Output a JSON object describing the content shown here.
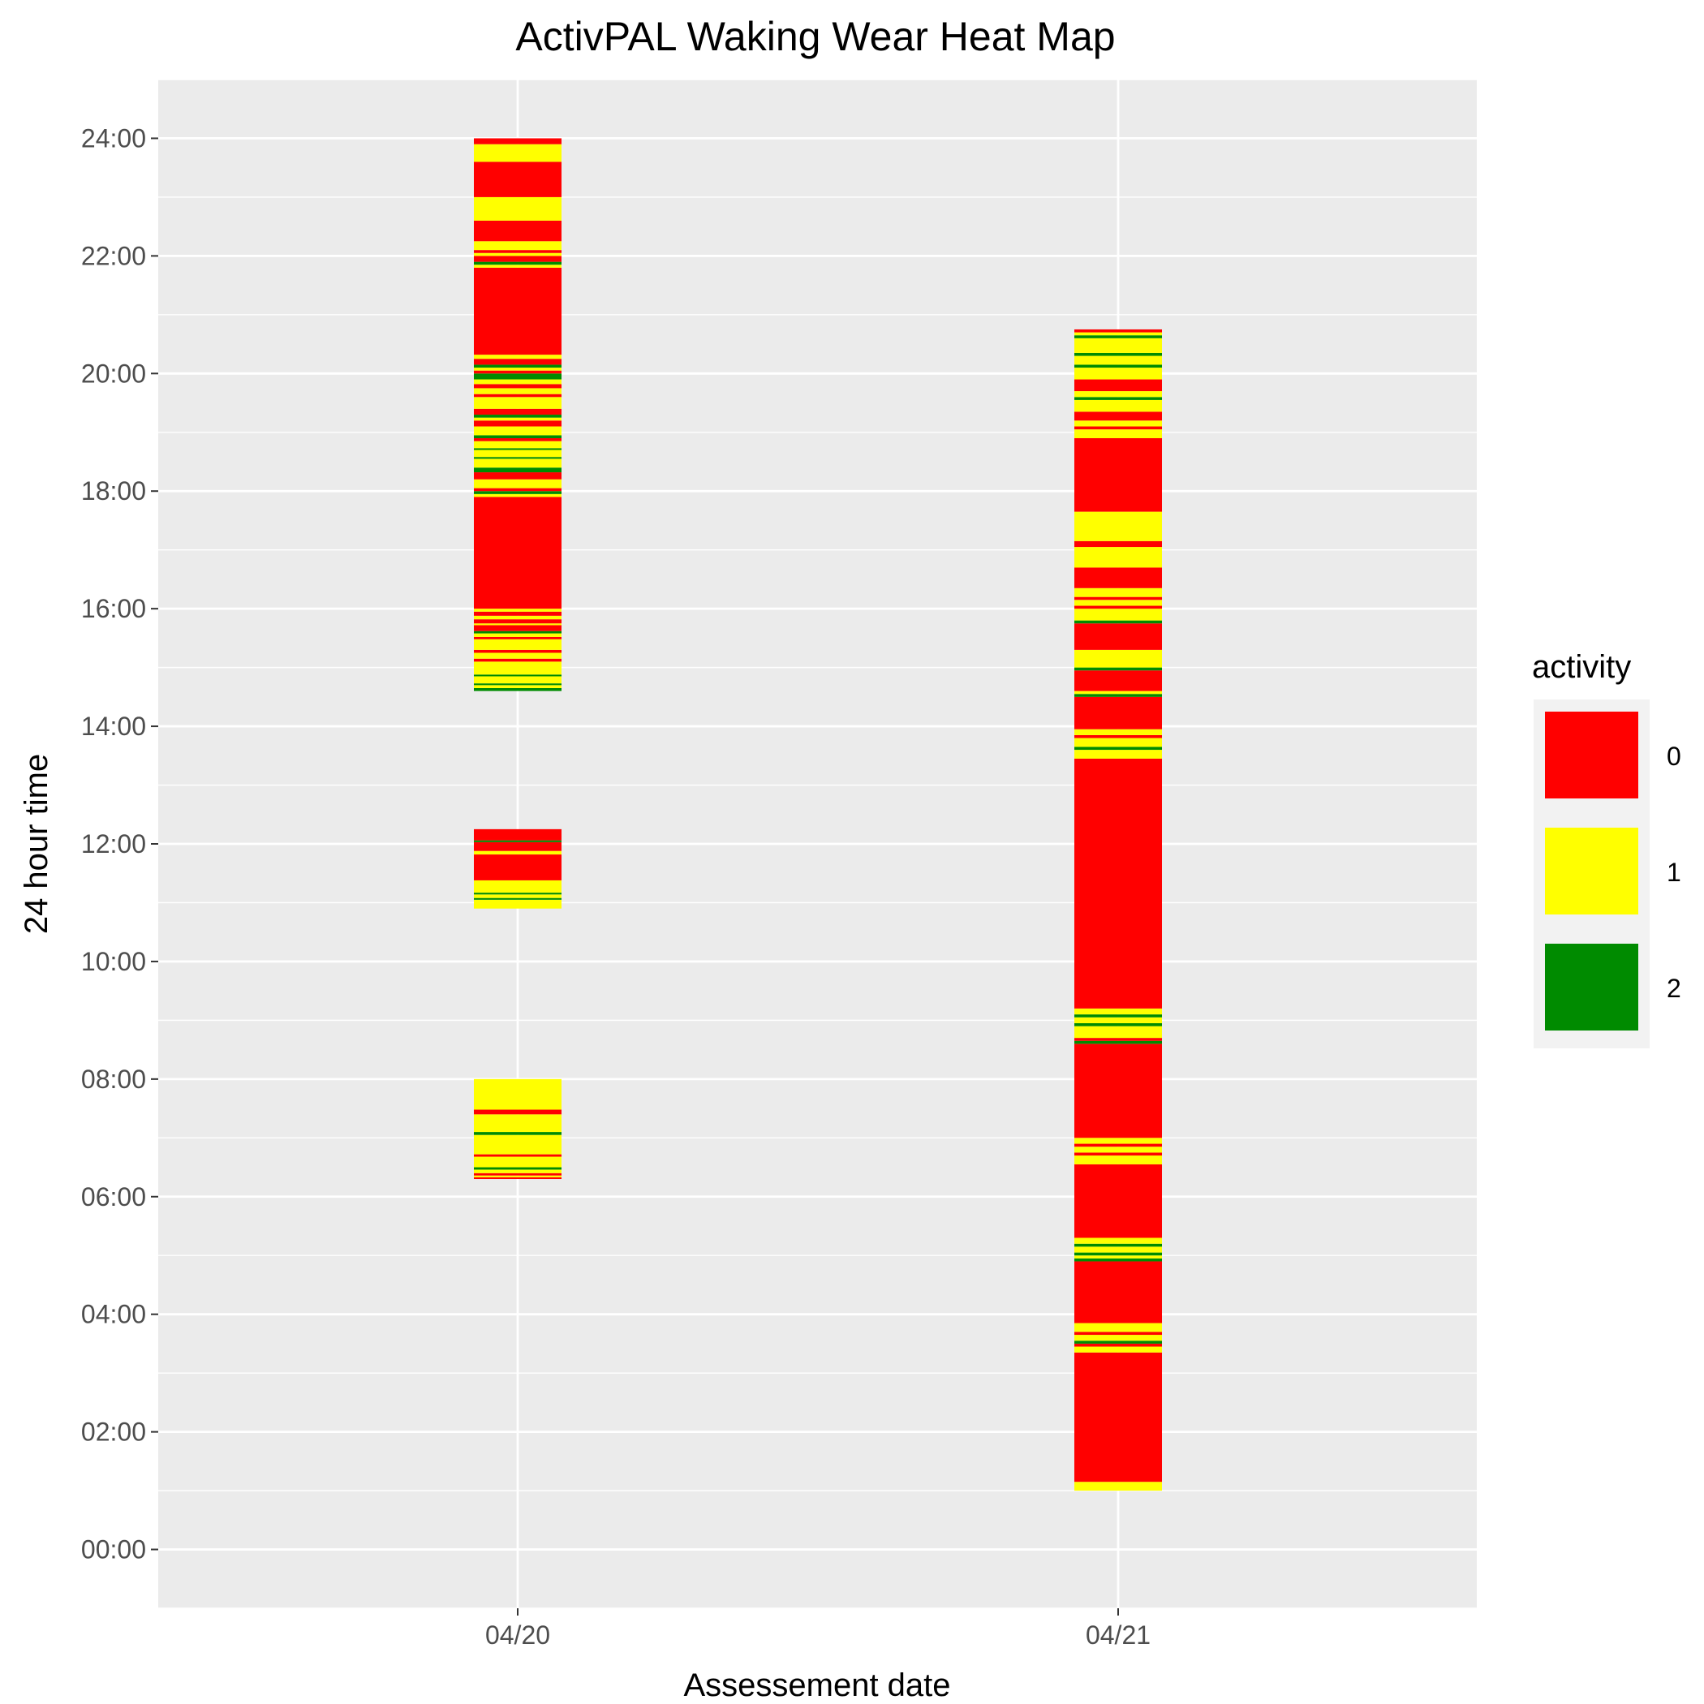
{
  "chart_data": {
    "type": "heatmap",
    "title": "ActivPAL Waking Wear Heat Map",
    "xlabel": "Assessement date",
    "ylabel": "24 hour time",
    "x_categories": [
      "04/20",
      "04/21"
    ],
    "y_ticks": [
      "00:00",
      "02:00",
      "04:00",
      "06:00",
      "08:00",
      "10:00",
      "12:00",
      "14:00",
      "16:00",
      "18:00",
      "20:00",
      "22:00",
      "24:00"
    ],
    "ylim_hours": [
      -1.0,
      25.0
    ],
    "grid": true,
    "legend": {
      "title": "activity",
      "position": "right",
      "entries": [
        {
          "label": "0",
          "color": "#FF0000"
        },
        {
          "label": "1",
          "color": "#FFFF00"
        },
        {
          "label": "2",
          "color": "#008B00"
        }
      ]
    },
    "colors": {
      "0": "#FF0000",
      "1": "#FFFF00",
      "2": "#008B00",
      "panel": "#EBEBEB",
      "grid": "#FFFFFF"
    },
    "columns": [
      {
        "date": "04/20",
        "segments": [
          [
            6.3,
            6.33,
            0
          ],
          [
            6.33,
            6.36,
            1
          ],
          [
            6.36,
            6.4,
            0
          ],
          [
            6.4,
            6.46,
            1
          ],
          [
            6.46,
            6.5,
            2
          ],
          [
            6.5,
            6.68,
            1
          ],
          [
            6.68,
            6.72,
            0
          ],
          [
            6.72,
            7.05,
            1
          ],
          [
            7.05,
            7.1,
            2
          ],
          [
            7.1,
            7.4,
            1
          ],
          [
            7.4,
            7.48,
            0
          ],
          [
            7.48,
            8.0,
            1
          ],
          [
            10.9,
            11.05,
            1
          ],
          [
            11.05,
            11.08,
            2
          ],
          [
            11.08,
            11.14,
            1
          ],
          [
            11.14,
            11.17,
            2
          ],
          [
            11.17,
            11.38,
            1
          ],
          [
            11.38,
            11.82,
            0
          ],
          [
            11.82,
            11.88,
            1
          ],
          [
            11.88,
            12.03,
            0
          ],
          [
            12.03,
            12.06,
            2
          ],
          [
            12.06,
            12.25,
            0
          ],
          [
            14.6,
            14.65,
            2
          ],
          [
            14.65,
            14.7,
            1
          ],
          [
            14.7,
            14.73,
            2
          ],
          [
            14.73,
            14.85,
            1
          ],
          [
            14.85,
            14.88,
            2
          ],
          [
            14.88,
            15.1,
            1
          ],
          [
            15.1,
            15.15,
            0
          ],
          [
            15.15,
            15.25,
            1
          ],
          [
            15.25,
            15.3,
            0
          ],
          [
            15.3,
            15.48,
            1
          ],
          [
            15.48,
            15.52,
            0
          ],
          [
            15.52,
            15.58,
            1
          ],
          [
            15.58,
            15.62,
            2
          ],
          [
            15.62,
            15.72,
            0
          ],
          [
            15.72,
            15.75,
            1
          ],
          [
            15.75,
            15.82,
            0
          ],
          [
            15.82,
            15.88,
            1
          ],
          [
            15.88,
            15.95,
            0
          ],
          [
            15.95,
            16.0,
            1
          ],
          [
            16.0,
            17.9,
            0
          ],
          [
            17.9,
            17.95,
            1
          ],
          [
            17.95,
            18.0,
            2
          ],
          [
            18.0,
            18.05,
            0
          ],
          [
            18.05,
            18.2,
            1
          ],
          [
            18.2,
            18.32,
            0
          ],
          [
            18.32,
            18.4,
            2
          ],
          [
            18.4,
            18.55,
            1
          ],
          [
            18.55,
            18.58,
            2
          ],
          [
            18.58,
            18.7,
            1
          ],
          [
            18.7,
            18.73,
            2
          ],
          [
            18.73,
            18.85,
            1
          ],
          [
            18.85,
            18.9,
            0
          ],
          [
            18.9,
            18.95,
            2
          ],
          [
            18.95,
            19.1,
            1
          ],
          [
            19.1,
            19.2,
            0
          ],
          [
            19.2,
            19.25,
            1
          ],
          [
            19.25,
            19.3,
            2
          ],
          [
            19.3,
            19.4,
            0
          ],
          [
            19.4,
            19.6,
            1
          ],
          [
            19.6,
            19.65,
            0
          ],
          [
            19.65,
            19.75,
            1
          ],
          [
            19.75,
            19.82,
            0
          ],
          [
            19.82,
            19.9,
            1
          ],
          [
            19.9,
            20.0,
            2
          ],
          [
            20.0,
            20.05,
            0
          ],
          [
            20.05,
            20.1,
            1
          ],
          [
            20.1,
            20.15,
            2
          ],
          [
            20.15,
            20.25,
            0
          ],
          [
            20.25,
            20.32,
            1
          ],
          [
            20.32,
            21.8,
            0
          ],
          [
            21.8,
            21.85,
            1
          ],
          [
            21.85,
            21.9,
            2
          ],
          [
            21.9,
            22.0,
            0
          ],
          [
            22.0,
            22.05,
            1
          ],
          [
            22.05,
            22.1,
            0
          ],
          [
            22.1,
            22.25,
            1
          ],
          [
            22.25,
            22.6,
            0
          ],
          [
            22.6,
            23.0,
            1
          ],
          [
            23.0,
            23.6,
            0
          ],
          [
            23.6,
            23.9,
            1
          ],
          [
            23.9,
            24.0,
            0
          ]
        ]
      },
      {
        "date": "04/21",
        "segments": [
          [
            1.0,
            1.15,
            1
          ],
          [
            1.15,
            3.35,
            0
          ],
          [
            3.35,
            3.45,
            1
          ],
          [
            3.45,
            3.5,
            0
          ],
          [
            3.5,
            3.55,
            2
          ],
          [
            3.55,
            3.65,
            1
          ],
          [
            3.65,
            3.7,
            0
          ],
          [
            3.7,
            3.85,
            1
          ],
          [
            3.85,
            4.9,
            0
          ],
          [
            4.9,
            4.95,
            2
          ],
          [
            4.95,
            5.0,
            1
          ],
          [
            5.0,
            5.05,
            2
          ],
          [
            5.05,
            5.15,
            1
          ],
          [
            5.15,
            5.2,
            2
          ],
          [
            5.2,
            5.3,
            1
          ],
          [
            5.3,
            6.55,
            0
          ],
          [
            6.55,
            6.7,
            1
          ],
          [
            6.7,
            6.75,
            0
          ],
          [
            6.75,
            6.85,
            1
          ],
          [
            6.85,
            6.9,
            0
          ],
          [
            6.9,
            7.0,
            1
          ],
          [
            7.0,
            8.6,
            0
          ],
          [
            8.6,
            8.65,
            2
          ],
          [
            8.65,
            8.7,
            0
          ],
          [
            8.7,
            8.9,
            1
          ],
          [
            8.9,
            8.95,
            2
          ],
          [
            8.95,
            9.05,
            1
          ],
          [
            9.05,
            9.1,
            2
          ],
          [
            9.1,
            9.2,
            1
          ],
          [
            9.2,
            13.45,
            0
          ],
          [
            13.45,
            13.6,
            1
          ],
          [
            13.6,
            13.65,
            2
          ],
          [
            13.65,
            13.8,
            1
          ],
          [
            13.8,
            13.85,
            0
          ],
          [
            13.85,
            13.95,
            1
          ],
          [
            13.95,
            14.5,
            0
          ],
          [
            14.5,
            14.55,
            2
          ],
          [
            14.55,
            14.6,
            1
          ],
          [
            14.6,
            14.95,
            0
          ],
          [
            14.95,
            15.0,
            2
          ],
          [
            15.0,
            15.3,
            1
          ],
          [
            15.3,
            15.75,
            0
          ],
          [
            15.75,
            15.8,
            2
          ],
          [
            15.8,
            16.0,
            1
          ],
          [
            16.0,
            16.05,
            0
          ],
          [
            16.05,
            16.15,
            1
          ],
          [
            16.15,
            16.2,
            0
          ],
          [
            16.2,
            16.35,
            1
          ],
          [
            16.35,
            16.7,
            0
          ],
          [
            16.7,
            17.05,
            1
          ],
          [
            17.05,
            17.15,
            0
          ],
          [
            17.15,
            17.65,
            1
          ],
          [
            17.65,
            18.9,
            0
          ],
          [
            18.9,
            19.05,
            1
          ],
          [
            19.05,
            19.1,
            0
          ],
          [
            19.1,
            19.2,
            1
          ],
          [
            19.2,
            19.35,
            0
          ],
          [
            19.35,
            19.55,
            1
          ],
          [
            19.55,
            19.6,
            2
          ],
          [
            19.6,
            19.7,
            1
          ],
          [
            19.7,
            19.9,
            0
          ],
          [
            19.9,
            20.1,
            1
          ],
          [
            20.1,
            20.15,
            2
          ],
          [
            20.15,
            20.3,
            1
          ],
          [
            20.3,
            20.35,
            2
          ],
          [
            20.35,
            20.6,
            1
          ],
          [
            20.6,
            20.65,
            2
          ],
          [
            20.65,
            20.7,
            1
          ],
          [
            20.7,
            20.75,
            0
          ]
        ]
      }
    ]
  }
}
